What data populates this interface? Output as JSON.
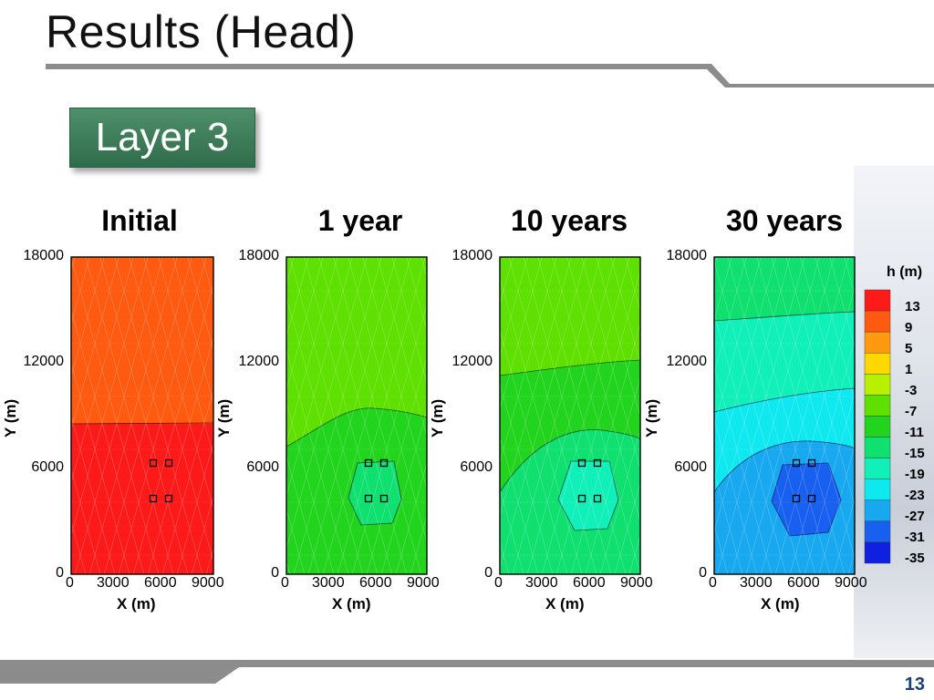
{
  "slide": {
    "title": "Results (Head)",
    "badge": "Layer 3",
    "page_number": "13"
  },
  "panels": [
    {
      "title": "Initial"
    },
    {
      "title": "1 year"
    },
    {
      "title": "10 years"
    },
    {
      "title": "30 years"
    }
  ],
  "axes": {
    "xlabel": "X (m)",
    "ylabel": "Y (m)",
    "x_ticks": [
      "0",
      "3000",
      "6000",
      "9000"
    ],
    "y_ticks": [
      "18000",
      "12000",
      "6000",
      "0"
    ],
    "xlim": [
      0,
      9000
    ],
    "ylim": [
      0,
      18000
    ]
  },
  "legend": {
    "title": "h (m)",
    "levels": [
      "13",
      "9",
      "5",
      "1",
      "-3",
      "-7",
      "-11",
      "-15",
      "-19",
      "-23",
      "-27",
      "-31",
      "-35"
    ],
    "colors": [
      "#ff1a1a",
      "#ff5a10",
      "#ff9a10",
      "#ffd800",
      "#b8f000",
      "#5ee000",
      "#22d41e",
      "#10e070",
      "#10f0b8",
      "#10e8f0",
      "#18a8f0",
      "#1860f0",
      "#1020e0"
    ]
  },
  "colors": {
    "rule_gray": "#8a8a8a",
    "badge_green": "#3d7c58"
  }
}
